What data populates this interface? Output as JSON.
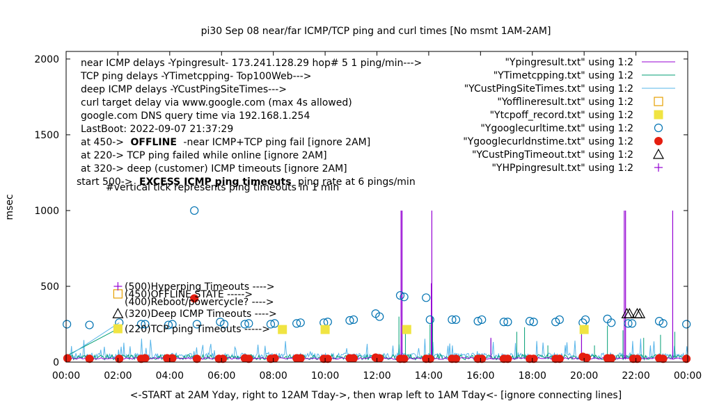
{
  "chart_data": {
    "type": "scatter",
    "title": "pi30 Sep 08  near/far ICMP/TCP ping and curl times [No msmt 1AM-2AM]",
    "xlabel": "<-START at 2AM Yday, right to 12AM Tday->, then wrap left to 1AM Tday<- [ignore connecting lines]",
    "ylabel": "msec",
    "xlim": [
      0,
      24
    ],
    "ylim": [
      0,
      2050
    ],
    "grid": false,
    "legend_position": "top-right",
    "x_ticks": [
      "00:00",
      "02:00",
      "04:00",
      "06:00",
      "08:00",
      "10:00",
      "12:00",
      "14:00",
      "16:00",
      "18:00",
      "20:00",
      "22:00",
      "00:00"
    ],
    "y_ticks": [
      0,
      500,
      1000,
      1500,
      2000
    ],
    "info_lines": [
      "near ICMP delays -Ypingresult- 173.241.128.29 hop# 5 1 ping/min--->",
      "TCP ping delays -YTimetcpping- Top100Web--->",
      "deep ICMP delays -YCustPingSiteTimes--->",
      "curl target delay via www.google.com (max 4s allowed)",
      "google.com DNS query time via 192.168.1.254",
      "LastBoot: 2022-09-07 21:37:29"
    ],
    "offline_note": {
      "prefix": "at 450->",
      "bold": "OFFLINE",
      "suffix": "-near ICMP+TCP ping fail [ignore 2AM]"
    },
    "tcp_note": "at 220-> TCP ping failed while online [ignore 2AM]",
    "deep_note": "at 320-> deep (customer) ICMP timeouts [ignore 2AM]",
    "excess_note": {
      "prefix": "start 500->",
      "bold": "EXCESS ICMP ping timeouts",
      "suffix": "ping rate at 6 pings/min"
    },
    "tick_note": "#vertical tick represents ping timeouts in 1 min",
    "marker_labels": [
      {
        "text": "(500)Hyperping Timeouts ---->",
        "y": 500
      },
      {
        "text": "(450)OFFLINE STATE ----->",
        "y": 450
      },
      {
        "text": "(400)Reboot/powercycle? ---->",
        "y": 400
      },
      {
        "text": "(320)Deep ICMP Timeouts ---->",
        "y": 320
      },
      {
        "text": "(220)TCP ping Timeouts ----->",
        "y": 220
      }
    ],
    "legend": [
      {
        "label": "\"Ypingresult.txt\" using 1:2",
        "color": "#9400d3",
        "kind": "line"
      },
      {
        "label": "\"YTimetcpping.txt\" using 1:2",
        "color": "#009e73",
        "kind": "line"
      },
      {
        "label": "\"YCustPingSiteTimes.txt\" using 1:2",
        "color": "#56b4e9",
        "kind": "line"
      },
      {
        "label": "\"Yofflineresult.txt\" using 1:2",
        "color": "#e69f00",
        "kind": "open-square"
      },
      {
        "label": "\"Ytcpoff_record.txt\" using 1:2",
        "color": "#f0e442",
        "kind": "filled-square"
      },
      {
        "label": "\"Ygooglecurltime.txt\" using 1:2",
        "color": "#0072b2",
        "kind": "open-circle"
      },
      {
        "label": "\"Ygooglecurldnstime.txt\" using 1:2",
        "color": "#e51e10",
        "kind": "filled-circle"
      },
      {
        "label": "\"YCustPingTimeout.txt\" using 1:2",
        "color": "#000000",
        "kind": "open-triangle"
      },
      {
        "label": "\"YHPpingresult.txt\" using 1:2",
        "color": "#9400d3",
        "kind": "plus"
      }
    ],
    "series": [
      {
        "name": "\"Ypingresult.txt\" using 1:2",
        "spikes": [
          [
            12.93,
            1000
          ],
          [
            12.97,
            1000
          ],
          [
            14.12,
            1000
          ],
          [
            14.1,
            520
          ],
          [
            21.55,
            1000
          ],
          [
            21.6,
            1000
          ],
          [
            23.42,
            1000
          ],
          [
            16.4,
            160
          ],
          [
            19.9,
            180
          ]
        ]
      },
      {
        "name": "\"YTimetcpping.txt\" using 1:2",
        "spikes": [
          [
            12.85,
            300
          ],
          [
            13.1,
            190
          ],
          [
            14.05,
            250
          ],
          [
            14.15,
            300
          ],
          [
            16.4,
            150
          ],
          [
            17.4,
            200
          ],
          [
            17.7,
            230
          ],
          [
            18.6,
            110
          ],
          [
            19.9,
            230
          ],
          [
            20.4,
            110
          ],
          [
            20.9,
            240
          ],
          [
            21.5,
            210
          ],
          [
            22.3,
            160
          ],
          [
            22.95,
            180
          ],
          [
            23.5,
            200
          ]
        ]
      },
      {
        "name": "\"YCustPingSiteTimes.txt\" using 1:2",
        "band": [
          20,
          60
        ]
      },
      {
        "name": "\"Yofflineresult.txt\" using 1:2",
        "points": [
          [
            2.0,
            450
          ]
        ]
      },
      {
        "name": "\"Ytcpoff_record.txt\" using 1:2",
        "points": [
          [
            2.0,
            220
          ],
          [
            8.35,
            215
          ],
          [
            10.0,
            215
          ],
          [
            13.15,
            215
          ],
          [
            20.0,
            215
          ]
        ]
      },
      {
        "name": "\"Ygooglecurltime.txt\" using 1:2",
        "points": [
          [
            0.03,
            250
          ],
          [
            0.9,
            245
          ],
          [
            2.05,
            260
          ],
          [
            2.9,
            250
          ],
          [
            3.05,
            250
          ],
          [
            3.95,
            245
          ],
          [
            4.1,
            250
          ],
          [
            4.95,
            1000
          ],
          [
            5.05,
            250
          ],
          [
            5.95,
            265
          ],
          [
            6.1,
            250
          ],
          [
            6.9,
            250
          ],
          [
            7.05,
            255
          ],
          [
            7.9,
            250
          ],
          [
            8.05,
            255
          ],
          [
            8.9,
            255
          ],
          [
            9.05,
            260
          ],
          [
            9.95,
            260
          ],
          [
            10.1,
            265
          ],
          [
            10.95,
            275
          ],
          [
            11.1,
            280
          ],
          [
            11.95,
            320
          ],
          [
            12.1,
            300
          ],
          [
            12.9,
            440
          ],
          [
            13.05,
            430
          ],
          [
            13.9,
            425
          ],
          [
            14.05,
            280
          ],
          [
            14.9,
            280
          ],
          [
            15.05,
            280
          ],
          [
            15.9,
            270
          ],
          [
            16.05,
            280
          ],
          [
            16.9,
            265
          ],
          [
            17.05,
            265
          ],
          [
            17.9,
            270
          ],
          [
            18.05,
            265
          ],
          [
            18.9,
            265
          ],
          [
            19.05,
            280
          ],
          [
            19.95,
            260
          ],
          [
            20.05,
            280
          ],
          [
            20.9,
            285
          ],
          [
            21.05,
            260
          ],
          [
            21.7,
            255
          ],
          [
            21.85,
            255
          ],
          [
            22.9,
            270
          ],
          [
            23.05,
            255
          ],
          [
            23.95,
            250
          ]
        ]
      },
      {
        "name": "\"Ygooglecurldnstime.txt\" using 1:2",
        "points": [
          [
            0.05,
            25
          ],
          [
            0.9,
            22
          ],
          [
            2.05,
            22
          ],
          [
            2.9,
            22
          ],
          [
            3.05,
            25
          ],
          [
            3.9,
            25
          ],
          [
            4.1,
            25
          ],
          [
            4.95,
            420
          ],
          [
            5.05,
            22
          ],
          [
            5.9,
            22
          ],
          [
            6.05,
            22
          ],
          [
            6.9,
            25
          ],
          [
            7.05,
            22
          ],
          [
            7.9,
            22
          ],
          [
            8.05,
            25
          ],
          [
            8.9,
            25
          ],
          [
            9.05,
            25
          ],
          [
            9.95,
            22
          ],
          [
            10.1,
            22
          ],
          [
            10.95,
            25
          ],
          [
            11.1,
            25
          ],
          [
            11.95,
            30
          ],
          [
            12.1,
            25
          ],
          [
            12.9,
            22
          ],
          [
            13.05,
            22
          ],
          [
            13.9,
            22
          ],
          [
            14.05,
            22
          ],
          [
            14.9,
            22
          ],
          [
            15.05,
            22
          ],
          [
            15.9,
            22
          ],
          [
            16.05,
            22
          ],
          [
            16.9,
            22
          ],
          [
            17.05,
            22
          ],
          [
            17.9,
            22
          ],
          [
            18.05,
            22
          ],
          [
            18.9,
            22
          ],
          [
            19.05,
            22
          ],
          [
            19.95,
            35
          ],
          [
            20.1,
            28
          ],
          [
            20.9,
            25
          ],
          [
            21.05,
            25
          ],
          [
            21.9,
            22
          ],
          [
            22.05,
            22
          ],
          [
            22.9,
            25
          ],
          [
            23.05,
            22
          ],
          [
            23.95,
            22
          ]
        ]
      },
      {
        "name": "\"YCustPingTimeout.txt\" using 1:2",
        "points": [
          [
            2.0,
            320
          ],
          [
            21.65,
            320
          ],
          [
            21.75,
            320
          ],
          [
            22.05,
            320
          ],
          [
            22.15,
            320
          ]
        ]
      },
      {
        "name": "\"YHPpingresult.txt\" using 1:2",
        "points": [
          [
            2.0,
            500
          ]
        ]
      }
    ]
  }
}
